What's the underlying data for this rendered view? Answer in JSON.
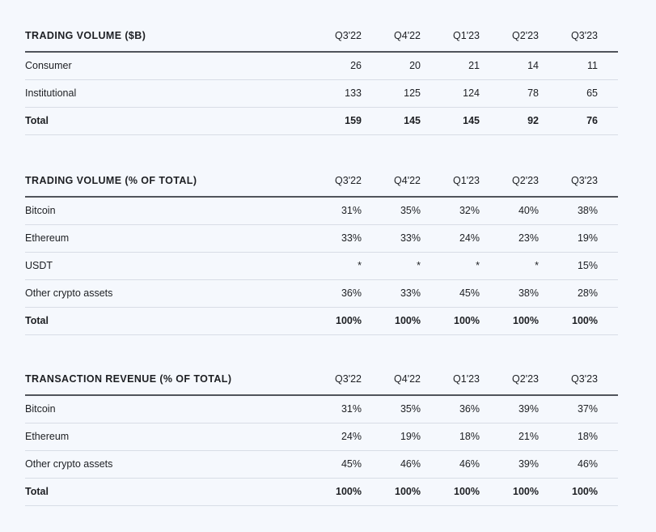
{
  "columns": [
    "Q3'22",
    "Q4'22",
    "Q1'23",
    "Q2'23",
    "Q3'23"
  ],
  "tables": [
    {
      "title": "TRADING VOLUME ($B)",
      "rows": [
        {
          "label": "Consumer",
          "values": [
            "26",
            "20",
            "21",
            "14",
            "11"
          ]
        },
        {
          "label": "Institutional",
          "values": [
            "133",
            "125",
            "124",
            "78",
            "65"
          ]
        },
        {
          "label": "Total",
          "values": [
            "159",
            "145",
            "145",
            "92",
            "76"
          ],
          "total": true
        }
      ]
    },
    {
      "title": "TRADING VOLUME (% OF TOTAL)",
      "rows": [
        {
          "label": "Bitcoin",
          "values": [
            "31%",
            "35%",
            "32%",
            "40%",
            "38%"
          ]
        },
        {
          "label": "Ethereum",
          "values": [
            "33%",
            "33%",
            "24%",
            "23%",
            "19%"
          ]
        },
        {
          "label": "USDT",
          "values": [
            "*",
            "*",
            "*",
            "*",
            "15%"
          ]
        },
        {
          "label": "Other crypto assets",
          "values": [
            "36%",
            "33%",
            "45%",
            "38%",
            "28%"
          ]
        },
        {
          "label": "Total",
          "values": [
            "100%",
            "100%",
            "100%",
            "100%",
            "100%"
          ],
          "total": true
        }
      ]
    },
    {
      "title": "TRANSACTION REVENUE (% OF TOTAL)",
      "rows": [
        {
          "label": "Bitcoin",
          "values": [
            "31%",
            "35%",
            "36%",
            "39%",
            "37%"
          ]
        },
        {
          "label": "Ethereum",
          "values": [
            "24%",
            "19%",
            "18%",
            "21%",
            "18%"
          ]
        },
        {
          "label": "Other crypto assets",
          "values": [
            "45%",
            "46%",
            "46%",
            "39%",
            "46%"
          ]
        },
        {
          "label": "Total",
          "values": [
            "100%",
            "100%",
            "100%",
            "100%",
            "100%"
          ],
          "total": true
        }
      ]
    }
  ]
}
